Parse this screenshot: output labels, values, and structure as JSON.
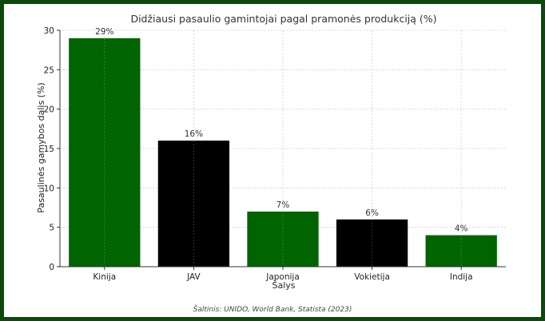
{
  "chart_data": {
    "type": "bar",
    "title": "Didžiausi pasaulio gamintojai pagal pramonės produkciją (%)",
    "xlabel": "Šalys",
    "ylabel": "Pasaulinės gamybos dalis (%)",
    "categories": [
      "Kinija",
      "JAV",
      "Japonija",
      "Vokietija",
      "Indija"
    ],
    "values": [
      29,
      16,
      7,
      6,
      4
    ],
    "data_labels": [
      "29%",
      "16%",
      "7%",
      "6%",
      "4%"
    ],
    "bar_colors": [
      "#006400",
      "#000000",
      "#006400",
      "#000000",
      "#006400"
    ],
    "ylim": [
      0,
      30
    ],
    "yticks": [
      0,
      5,
      10,
      15,
      20,
      25,
      30
    ],
    "grid": true,
    "source": "Šaltinis: UNIDO, World Bank, Statista (2023)"
  },
  "colors": {
    "frame": "#0b4a0b",
    "grid": "#d0d0d0",
    "axis": "#333333"
  }
}
